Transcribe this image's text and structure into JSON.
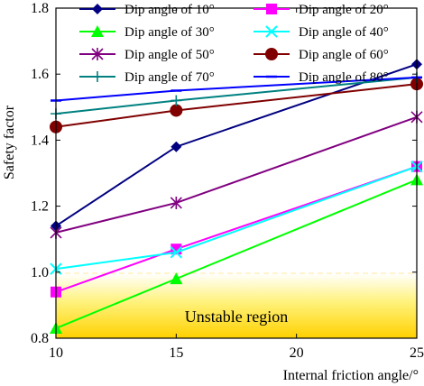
{
  "chart_data": {
    "type": "line",
    "xlabel": "Internal friction angle/°",
    "ylabel": "Safety factor",
    "x": [
      10,
      15,
      25
    ],
    "xlim": [
      10,
      25
    ],
    "ylim": [
      0.8,
      1.8
    ],
    "xticks": [
      "10",
      "15",
      "20",
      "25"
    ],
    "yticks": [
      "0.8",
      "1.0",
      "1.2",
      "1.4",
      "1.6",
      "1.8"
    ],
    "grid": false,
    "legend_position": "top",
    "region": {
      "label": "Unstable region",
      "y_from": 0.8,
      "y_to": 1.0
    },
    "series": [
      {
        "name": "Dip angle of 10°",
        "color": "#000080",
        "marker": "diamond",
        "values": [
          1.14,
          1.38,
          1.63
        ]
      },
      {
        "name": "Dip angle of 20°",
        "color": "#ff00ff",
        "marker": "square",
        "values": [
          0.94,
          1.07,
          1.32
        ]
      },
      {
        "name": "Dip angle of 30°",
        "color": "#00ff00",
        "marker": "triangle",
        "values": [
          0.83,
          0.98,
          1.28
        ]
      },
      {
        "name": "Dip angle of 40°",
        "color": "#00ffff",
        "marker": "x",
        "values": [
          1.01,
          1.06,
          1.32
        ]
      },
      {
        "name": "Dip angle of 50°",
        "color": "#800080",
        "marker": "star",
        "values": [
          1.12,
          1.21,
          1.47
        ]
      },
      {
        "name": "Dip angle of 60°",
        "color": "#800000",
        "marker": "circle",
        "values": [
          1.44,
          1.49,
          1.57
        ]
      },
      {
        "name": "Dip angle of 70°",
        "color": "#008080",
        "marker": "plus",
        "values": [
          1.48,
          1.52,
          1.59
        ]
      },
      {
        "name": "Dip angle of 80°",
        "color": "#0000ff",
        "marker": "dash",
        "values": [
          1.52,
          1.55,
          1.59
        ]
      }
    ]
  }
}
